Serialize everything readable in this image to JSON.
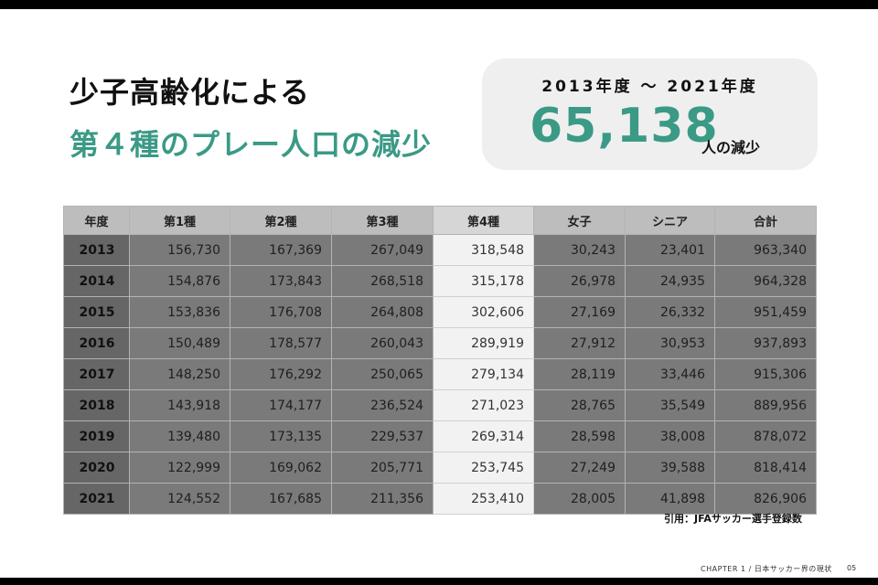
{
  "title": {
    "line1": "少子高齢化による",
    "line2": "第４種のプレー人口の減少"
  },
  "highlight": {
    "period": "2013年度 〜 2021年度",
    "value": "65,138",
    "unit": "人の減少",
    "accent_color": "#3a9a86"
  },
  "table": {
    "headers": [
      "年度",
      "第1種",
      "第2種",
      "第3種",
      "第4種",
      "女子",
      "シニア",
      "合計"
    ],
    "highlight_column": "第4種",
    "rows": [
      [
        "2013",
        "156,730",
        "167,369",
        "267,049",
        "318,548",
        "30,243",
        "23,401",
        "963,340"
      ],
      [
        "2014",
        "154,876",
        "173,843",
        "268,518",
        "315,178",
        "26,978",
        "24,935",
        "964,328"
      ],
      [
        "2015",
        "153,836",
        "176,708",
        "264,808",
        "302,606",
        "27,169",
        "26,332",
        "951,459"
      ],
      [
        "2016",
        "150,489",
        "178,577",
        "260,043",
        "289,919",
        "27,912",
        "30,953",
        "937,893"
      ],
      [
        "2017",
        "148,250",
        "176,292",
        "250,065",
        "279,134",
        "28,119",
        "33,446",
        "915,306"
      ],
      [
        "2018",
        "143,918",
        "174,177",
        "236,524",
        "271,023",
        "28,765",
        "35,549",
        "889,956"
      ],
      [
        "2019",
        "139,480",
        "173,135",
        "229,537",
        "269,314",
        "28,598",
        "38,008",
        "878,072"
      ],
      [
        "2020",
        "122,999",
        "169,062",
        "205,771",
        "253,745",
        "27,249",
        "39,588",
        "818,414"
      ],
      [
        "2021",
        "124,552",
        "167,685",
        "211,356",
        "253,410",
        "28,005",
        "41,898",
        "826,906"
      ]
    ]
  },
  "citation": "引用：JFAサッカー選手登録数",
  "footer": {
    "chapter": "CHAPTER 1 / 日本サッカー界の現状",
    "page": "05"
  }
}
